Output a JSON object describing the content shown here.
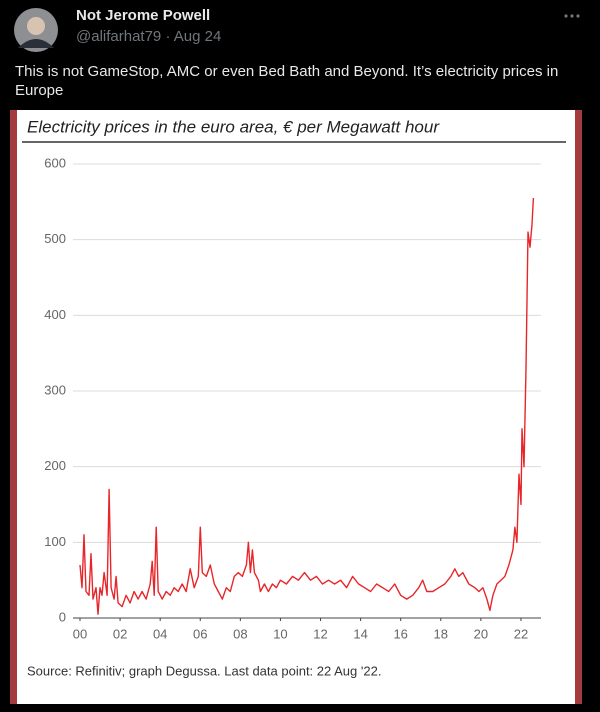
{
  "tweet": {
    "name": "Not Jerome Powell",
    "handle": "@alifarhat79 · Aug 24",
    "text": "This is not GameStop, AMC or even Bed Bath and Beyond. It’s electricity prices in Europe"
  },
  "chart_data": {
    "type": "line",
    "title": "Electricity prices in the euro area, € per Megawatt hour",
    "note": "Source: Refinitiv; graph Degussa. Last data point: 22 Aug '22.",
    "color": "#e8262a",
    "grid": true,
    "xlim": [
      2000,
      2023
    ],
    "ylim": [
      0,
      600
    ],
    "yticks": [
      0,
      100,
      200,
      300,
      400,
      500,
      600
    ],
    "xticks": [
      {
        "value": 2000,
        "label": "00"
      },
      {
        "value": 2002,
        "label": "02"
      },
      {
        "value": 2004,
        "label": "04"
      },
      {
        "value": 2006,
        "label": "06"
      },
      {
        "value": 2008,
        "label": "08"
      },
      {
        "value": 2010,
        "label": "10"
      },
      {
        "value": 2012,
        "label": "12"
      },
      {
        "value": 2014,
        "label": "14"
      },
      {
        "value": 2016,
        "label": "16"
      },
      {
        "value": 2018,
        "label": "18"
      },
      {
        "value": 2020,
        "label": "20"
      },
      {
        "value": 2022,
        "label": "22"
      }
    ],
    "x": [
      2000.0,
      2000.1,
      2000.2,
      2000.3,
      2000.45,
      2000.55,
      2000.65,
      2000.8,
      2000.9,
      2001.0,
      2001.1,
      2001.2,
      2001.35,
      2001.45,
      2001.55,
      2001.7,
      2001.8,
      2001.9,
      2002.1,
      2002.3,
      2002.5,
      2002.7,
      2002.9,
      2003.1,
      2003.3,
      2003.5,
      2003.6,
      2003.7,
      2003.8,
      2003.9,
      2004.1,
      2004.3,
      2004.5,
      2004.7,
      2004.9,
      2005.1,
      2005.3,
      2005.5,
      2005.7,
      2005.9,
      2006.0,
      2006.1,
      2006.3,
      2006.5,
      2006.7,
      2006.9,
      2007.1,
      2007.3,
      2007.5,
      2007.7,
      2007.9,
      2008.1,
      2008.3,
      2008.4,
      2008.5,
      2008.6,
      2008.7,
      2008.9,
      2009.0,
      2009.2,
      2009.4,
      2009.6,
      2009.8,
      2010.0,
      2010.3,
      2010.6,
      2010.9,
      2011.2,
      2011.5,
      2011.8,
      2012.1,
      2012.4,
      2012.7,
      2013.0,
      2013.3,
      2013.6,
      2013.9,
      2014.2,
      2014.5,
      2014.8,
      2015.1,
      2015.4,
      2015.7,
      2016.0,
      2016.3,
      2016.6,
      2016.9,
      2017.1,
      2017.3,
      2017.6,
      2017.9,
      2018.2,
      2018.5,
      2018.7,
      2018.9,
      2019.1,
      2019.4,
      2019.7,
      2019.9,
      2020.1,
      2020.3,
      2020.45,
      2020.6,
      2020.8,
      2021.0,
      2021.2,
      2021.4,
      2021.6,
      2021.7,
      2021.8,
      2021.9,
      2022.0,
      2022.05,
      2022.15,
      2022.25,
      2022.35,
      2022.45,
      2022.55,
      2022.62
    ],
    "values": [
      70,
      40,
      110,
      35,
      30,
      85,
      25,
      40,
      5,
      40,
      30,
      60,
      30,
      170,
      40,
      25,
      55,
      20,
      15,
      30,
      20,
      35,
      25,
      35,
      25,
      45,
      75,
      30,
      120,
      35,
      25,
      35,
      30,
      40,
      35,
      45,
      35,
      65,
      40,
      55,
      120,
      60,
      55,
      70,
      45,
      35,
      25,
      40,
      35,
      55,
      60,
      55,
      70,
      100,
      60,
      90,
      60,
      50,
      35,
      45,
      35,
      45,
      40,
      50,
      45,
      55,
      50,
      60,
      50,
      55,
      45,
      50,
      45,
      50,
      40,
      55,
      45,
      40,
      35,
      45,
      40,
      35,
      45,
      30,
      25,
      30,
      40,
      50,
      35,
      35,
      40,
      45,
      55,
      65,
      55,
      60,
      45,
      40,
      35,
      40,
      25,
      10,
      30,
      45,
      50,
      55,
      70,
      90,
      120,
      100,
      190,
      150,
      250,
      200,
      330,
      510,
      490,
      520,
      555
    ]
  }
}
